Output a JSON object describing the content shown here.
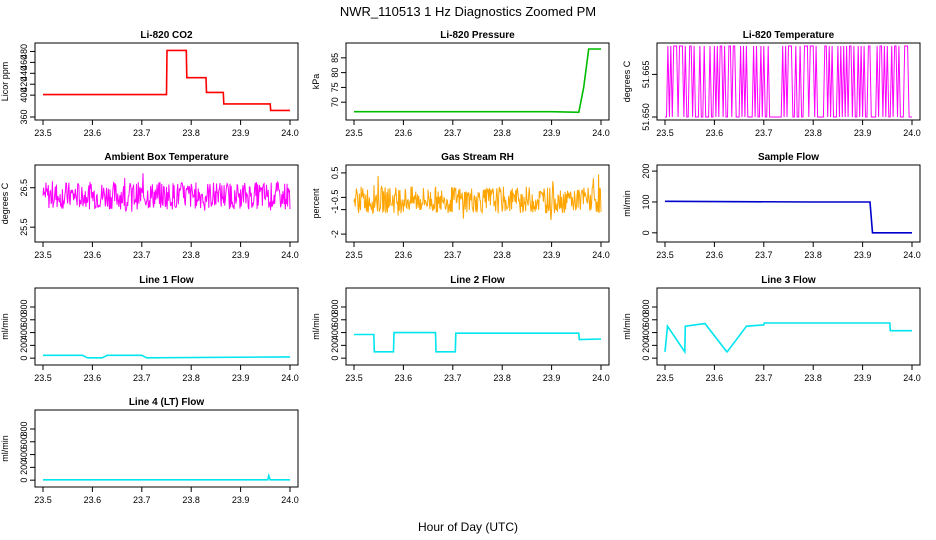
{
  "figure": {
    "title": "NWR_110513  1 Hz Diagnostics Zoomed PM",
    "xlabel": "Hour of Day (UTC)"
  },
  "chart_data": [
    {
      "id": "co2",
      "type": "line",
      "title": "Li-820 CO2",
      "ylabel": "Licor ppm",
      "color": "#ff0000",
      "xlim": [
        23.5,
        24.0
      ],
      "ylim": [
        360,
        490
      ],
      "xticks": [
        "23.5",
        "23.6",
        "23.7",
        "23.8",
        "23.9",
        "24.0"
      ],
      "yticks": [
        360,
        400,
        420,
        440,
        460,
        480
      ],
      "series": [
        {
          "x": [
            23.5,
            23.6,
            23.7,
            23.75,
            23.751,
            23.79,
            23.791,
            23.83,
            23.831,
            23.865,
            23.866,
            23.96,
            23.961,
            24.0
          ],
          "y": [
            401,
            401,
            401,
            401,
            482,
            482,
            432,
            432,
            405,
            405,
            384,
            384,
            372,
            372
          ]
        }
      ]
    },
    {
      "id": "pressure",
      "type": "line",
      "title": "Li-820 Pressure",
      "ylabel": "kPa",
      "color": "#00bb00",
      "xlim": [
        23.5,
        24.0
      ],
      "ylim": [
        65,
        89
      ],
      "xticks": [
        "23.5",
        "23.6",
        "23.7",
        "23.8",
        "23.9",
        "24.0"
      ],
      "yticks": [
        70,
        75,
        80,
        85
      ],
      "series": [
        {
          "x": [
            23.5,
            23.9,
            23.955,
            23.965,
            23.975,
            24.0
          ],
          "y": [
            66.8,
            66.8,
            66.6,
            75,
            88,
            88
          ]
        }
      ]
    },
    {
      "id": "temperature",
      "type": "line",
      "title": "Li-820 Temperature",
      "ylabel": "degrees C",
      "color": "#ff00ff",
      "xlim": [
        23.5,
        24.0
      ],
      "ylim": [
        51.65,
        51.675
      ],
      "xticks": [
        "23.5",
        "23.6",
        "23.7",
        "23.8",
        "23.9",
        "24.0"
      ],
      "yticks": [
        "51.650",
        "51.665"
      ],
      "series": [
        {
          "x": [
            23.5,
            24.0
          ],
          "y": [
            51.65,
            51.675
          ],
          "mode": "toggle"
        }
      ]
    },
    {
      "id": "ambient",
      "type": "line",
      "title": "Ambient Box Temperature",
      "ylabel": "degrees C",
      "color": "#ff00ff",
      "xlim": [
        23.5,
        24.0
      ],
      "ylim": [
        25.2,
        27.0
      ],
      "xticks": [
        "23.5",
        "23.6",
        "23.7",
        "23.8",
        "23.9",
        "24.0"
      ],
      "yticks": [
        25.5,
        26.5
      ],
      "series": [
        {
          "x": [
            23.5,
            24.0
          ],
          "y": [
            26.3,
            26.3
          ],
          "mode": "noise",
          "amp": 0.35
        }
      ]
    },
    {
      "id": "rh",
      "type": "line",
      "title": "Gas Stream RH",
      "ylabel": "percent",
      "color": "#ffa500",
      "xlim": [
        23.5,
        24.0
      ],
      "ylim": [
        -2.2,
        0.7
      ],
      "xticks": [
        "23.5",
        "23.6",
        "23.7",
        "23.8",
        "23.9",
        "24.0"
      ],
      "yticks": [
        -2.0,
        -1.0,
        -0.5,
        0.5
      ],
      "series": [
        {
          "x": [
            23.5,
            24.0
          ],
          "y": [
            -0.6,
            -0.6
          ],
          "mode": "noise",
          "amp": 0.55
        }
      ]
    },
    {
      "id": "sample",
      "type": "line",
      "title": "Sample Flow",
      "ylabel": "ml/min",
      "color": "#0000cc",
      "xlim": [
        23.5,
        24.0
      ],
      "ylim": [
        -20,
        210
      ],
      "xticks": [
        "23.5",
        "23.6",
        "23.7",
        "23.8",
        "23.9",
        "24.0"
      ],
      "yticks": [
        0,
        100,
        200
      ],
      "series": [
        {
          "x": [
            23.5,
            23.8,
            23.915,
            23.92,
            23.925,
            24.0
          ],
          "y": [
            102,
            100,
            100,
            0,
            0,
            0
          ]
        }
      ]
    },
    {
      "id": "line1",
      "type": "line",
      "title": "Line 1 Flow",
      "ylabel": "ml/min",
      "color": "#00e5ee",
      "xlim": [
        23.5,
        24.0
      ],
      "ylim": [
        -60,
        1050
      ],
      "xticks": [
        "23.5",
        "23.6",
        "23.7",
        "23.8",
        "23.9",
        "24.0"
      ],
      "yticks": [
        0,
        200,
        400,
        600,
        800
      ],
      "series": [
        {
          "x": [
            23.5,
            23.58,
            23.59,
            23.62,
            23.63,
            23.7,
            23.71,
            24.0
          ],
          "y": [
            45,
            45,
            5,
            5,
            45,
            45,
            5,
            20
          ]
        }
      ]
    },
    {
      "id": "line2",
      "type": "line",
      "title": "Line 2 Flow",
      "ylabel": "ml/min",
      "color": "#00e5ee",
      "xlim": [
        23.5,
        24.0
      ],
      "ylim": [
        -60,
        1050
      ],
      "xticks": [
        "23.5",
        "23.6",
        "23.7",
        "23.8",
        "23.9",
        "24.0"
      ],
      "yticks": [
        0,
        200,
        400,
        600,
        800
      ],
      "series": [
        {
          "x": [
            23.5,
            23.54,
            23.541,
            23.58,
            23.581,
            23.665,
            23.666,
            23.705,
            23.706,
            23.955,
            23.956,
            24.0
          ],
          "y": [
            370,
            370,
            100,
            100,
            400,
            400,
            100,
            100,
            390,
            390,
            290,
            300
          ]
        }
      ]
    },
    {
      "id": "line3",
      "type": "line",
      "title": "Line 3 Flow",
      "ylabel": "ml/min",
      "color": "#00e5ee",
      "xlim": [
        23.5,
        24.0
      ],
      "ylim": [
        -60,
        1050
      ],
      "xticks": [
        "23.5",
        "23.6",
        "23.7",
        "23.8",
        "23.9",
        "24.0"
      ],
      "yticks": [
        0,
        200,
        400,
        600,
        800
      ],
      "series": [
        {
          "x": [
            23.5,
            23.505,
            23.54,
            23.541,
            23.58,
            23.581,
            23.625,
            23.626,
            23.665,
            23.666,
            23.7,
            23.701,
            23.955,
            23.956,
            24.0
          ],
          "y": [
            100,
            500,
            100,
            500,
            540,
            540,
            100,
            100,
            500,
            500,
            520,
            550,
            550,
            430,
            430
          ]
        }
      ]
    },
    {
      "id": "line4",
      "type": "line",
      "title": "Line 4 (LT) Flow",
      "ylabel": "ml/min",
      "color": "#00e5ee",
      "xlim": [
        23.5,
        24.0
      ],
      "ylim": [
        -60,
        1050
      ],
      "xticks": [
        "23.5",
        "23.6",
        "23.7",
        "23.8",
        "23.9",
        "24.0"
      ],
      "yticks": [
        0,
        200,
        400,
        600,
        800
      ],
      "series": [
        {
          "x": [
            23.5,
            23.955,
            23.957,
            23.96,
            24.0
          ],
          "y": [
            5,
            5,
            70,
            5,
            5
          ]
        }
      ]
    }
  ]
}
